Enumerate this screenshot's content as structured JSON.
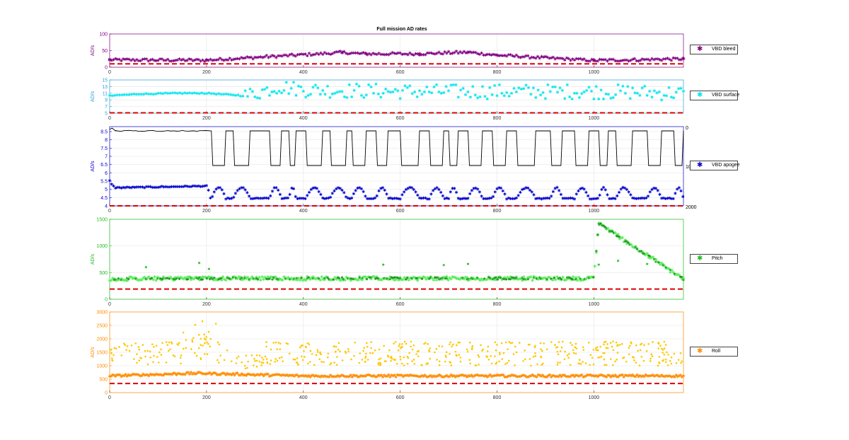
{
  "figure_title": "Full mission AD rates",
  "colors": {
    "bleed": "#800080",
    "surface": "#00E5EE",
    "apogee": "#0000CD",
    "pitch": "#22BB22",
    "pitch_light": "#55EE55",
    "roll": "#FF8C00",
    "roll_light": "#FFC800",
    "threshold": "#E00000",
    "black_line": "#000000"
  },
  "chart_data": [
    {
      "type": "scatter",
      "title": "Full mission AD rates",
      "xlabel": "",
      "ylabel": "AD/s",
      "xlim": [
        0,
        1185
      ],
      "ylim": [
        0,
        100
      ],
      "xticks": [
        0,
        200,
        400,
        600,
        800,
        1000
      ],
      "yticks": [
        0,
        50,
        100
      ],
      "series": [
        {
          "name": "VBD bleed",
          "values": [
            [
              0,
              22
            ],
            [
              200,
              21
            ],
            [
              480,
              44
            ],
            [
              530,
              40
            ],
            [
              640,
              40
            ],
            [
              740,
              45
            ],
            [
              800,
              36
            ],
            [
              1000,
              20
            ],
            [
              1185,
              25
            ]
          ]
        }
      ],
      "threshold": 10,
      "legend": "right",
      "grid": true
    },
    {
      "type": "scatter",
      "xlabel": "",
      "ylabel": "AD/s",
      "xlim": [
        0,
        1185
      ],
      "ylim": [
        5,
        15
      ],
      "xticks": [
        0,
        200,
        400,
        600,
        800,
        1000
      ],
      "yticks": [
        5,
        7,
        9,
        11,
        13,
        15
      ],
      "series": [
        {
          "name": "VBD surface",
          "values": [
            [
              0,
              10.2
            ],
            [
              50,
              10.7
            ],
            [
              150,
              11
            ],
            [
              200,
              11
            ],
            [
              280,
              10.2
            ],
            [
              350,
              13
            ],
            [
              400,
              12
            ],
            [
              600,
              11.5
            ],
            [
              800,
              11.5
            ],
            [
              1000,
              11.5
            ],
            [
              1185,
              11
            ]
          ]
        }
      ],
      "threshold": 5.1,
      "legend": "right",
      "grid": true
    },
    {
      "type": "line",
      "xlabel": "",
      "ylabel": "AD/s",
      "xlim": [
        0,
        1185
      ],
      "ylim": [
        4,
        8.8
      ],
      "xticks": [
        0,
        200,
        400,
        600,
        800,
        1000
      ],
      "yticks": [
        4,
        4.5,
        5,
        5.5,
        6,
        6.5,
        7,
        7.5,
        8,
        8.5
      ],
      "right_yticks": [
        "0",
        "1000",
        "2000"
      ],
      "series": [
        {
          "name": "VBD apogee",
          "values": [
            [
              0,
              5.5
            ],
            [
              10,
              5.1
            ],
            [
              200,
              5.2
            ],
            [
              210,
              4.5
            ],
            [
              1185,
              4.6
            ]
          ]
        }
      ],
      "dives": [
        [
          210,
          240
        ],
        [
          255,
          290
        ],
        [
          330,
          355
        ],
        [
          370,
          385
        ],
        [
          405,
          440
        ],
        [
          455,
          490
        ],
        [
          500,
          530
        ],
        [
          550,
          575
        ],
        [
          600,
          640
        ],
        [
          660,
          690
        ],
        [
          700,
          720
        ],
        [
          740,
          770
        ],
        [
          790,
          820
        ],
        [
          840,
          880
        ],
        [
          910,
          935
        ],
        [
          960,
          990
        ],
        [
          1010,
          1030
        ],
        [
          1045,
          1080
        ],
        [
          1110,
          1140
        ],
        [
          1165,
          1185
        ]
      ],
      "threshold": 4,
      "legend": "right",
      "grid": true
    },
    {
      "type": "scatter",
      "xlabel": "",
      "ylabel": "AD/s",
      "xlim": [
        0,
        1185
      ],
      "ylim": [
        0,
        1500
      ],
      "xticks": [
        0,
        200,
        400,
        600,
        800,
        1000
      ],
      "yticks": [
        0,
        500,
        1000,
        1500
      ],
      "series": [
        {
          "name": "Pitch",
          "values": [
            [
              0,
              380
            ],
            [
              200,
              390
            ],
            [
              600,
              390
            ],
            [
              1000,
              390
            ],
            [
              1010,
              1420
            ],
            [
              1185,
              380
            ]
          ]
        }
      ],
      "threshold": 190,
      "legend": "right",
      "grid": true
    },
    {
      "type": "scatter",
      "xlabel": "",
      "ylabel": "AD/s",
      "xlim": [
        0,
        1185
      ],
      "ylim": [
        0,
        3000
      ],
      "xticks": [
        0,
        200,
        400,
        600,
        800,
        1000
      ],
      "yticks": [
        0,
        500,
        1000,
        1500,
        2000,
        2500,
        3000
      ],
      "series": [
        {
          "name": "Roll",
          "values": [
            [
              0,
              620
            ],
            [
              180,
              720
            ],
            [
              400,
              620
            ],
            [
              800,
              620
            ],
            [
              1185,
              620
            ]
          ]
        }
      ],
      "threshold": 340,
      "legend": "right",
      "grid": true
    }
  ]
}
